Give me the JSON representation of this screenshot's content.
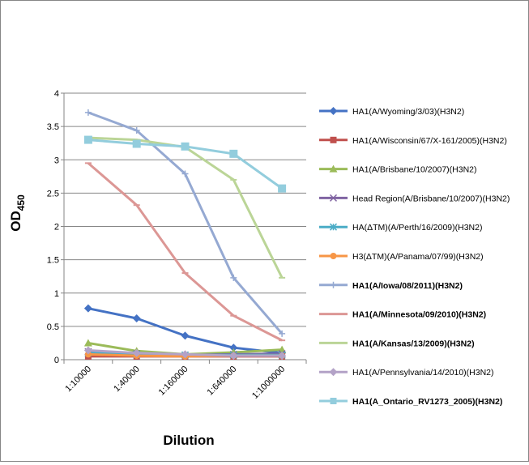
{
  "chart_data": {
    "type": "line",
    "xlabel": "Dilution",
    "ylabel": "OD",
    "ylabel_subscript": "450",
    "categories": [
      "1:10000",
      "1:40000",
      "1:160000",
      "1:640000",
      "1:1000000"
    ],
    "ylim": [
      0,
      4
    ],
    "yticks": [
      "0",
      "0.5",
      "1",
      "1.5",
      "2",
      "2.5",
      "3",
      "3.5",
      "4"
    ],
    "grid": "horizontal",
    "legend_position": "right",
    "series": [
      {
        "name": "HA1(A/Wyoming/3/03)(H3N2)",
        "bold": false,
        "color": "#4472C4",
        "marker": "diamond",
        "values": [
          0.77,
          0.62,
          0.36,
          0.18,
          0.1
        ]
      },
      {
        "name": "HA1(A/Wisconsin/67/X-161/2005)(H3N2)",
        "bold": false,
        "color": "#C0504D",
        "marker": "square",
        "values": [
          0.05,
          0.05,
          0.05,
          0.05,
          0.05
        ]
      },
      {
        "name": "HA1(A/Brisbane/10/2007)(H3N2)",
        "bold": false,
        "color": "#9BBB59",
        "marker": "triangle",
        "values": [
          0.25,
          0.13,
          0.08,
          0.11,
          0.15
        ]
      },
      {
        "name": "Head Region(A/Brisbane/10/2007)(H3N2)",
        "bold": false,
        "color": "#8064A2",
        "marker": "x",
        "values": [
          0.12,
          0.09,
          0.07,
          0.08,
          0.09
        ]
      },
      {
        "name": "HA(ΔTM)(A/Perth/16/2009)(H3N2)",
        "bold": false,
        "color": "#4BACC6",
        "marker": "star",
        "values": [
          0.1,
          0.08,
          0.07,
          0.07,
          0.07
        ]
      },
      {
        "name": "H3(ΔTM)(A/Panama/07/99)(H3N2)",
        "bold": false,
        "color": "#F79646",
        "marker": "circle",
        "values": [
          0.08,
          0.06,
          0.05,
          0.06,
          0.06
        ]
      },
      {
        "name": "HA1(A/Iowa/08/2011)(H3N2)",
        "bold": true,
        "color": "#95A9D2",
        "marker": "plus",
        "values": [
          3.71,
          3.44,
          2.79,
          1.23,
          0.39
        ]
      },
      {
        "name": "HA1(A/Minnesota/09/2010)(H3N2)",
        "bold": true,
        "color": "#DC9795",
        "marker": "dash",
        "values": [
          2.95,
          2.32,
          1.3,
          0.66,
          0.29
        ]
      },
      {
        "name": "HA1(A/Kansas/13/2009)(H3N2)",
        "bold": true,
        "color": "#BBD597",
        "marker": "dash",
        "values": [
          3.33,
          3.3,
          3.19,
          2.7,
          1.23
        ]
      },
      {
        "name": "HA1(A/Pennsylvania/14/2010)(H3N2)",
        "bold": false,
        "color": "#B3A2C7",
        "marker": "diamond",
        "values": [
          0.14,
          0.1,
          0.08,
          0.06,
          0.06
        ]
      },
      {
        "name": "HA1(A_Ontario_RV1273_2005)(H3N2)",
        "bold": true,
        "color": "#93CDDD",
        "marker": "square",
        "values": [
          3.3,
          3.24,
          3.2,
          3.09,
          2.57
        ]
      }
    ]
  }
}
